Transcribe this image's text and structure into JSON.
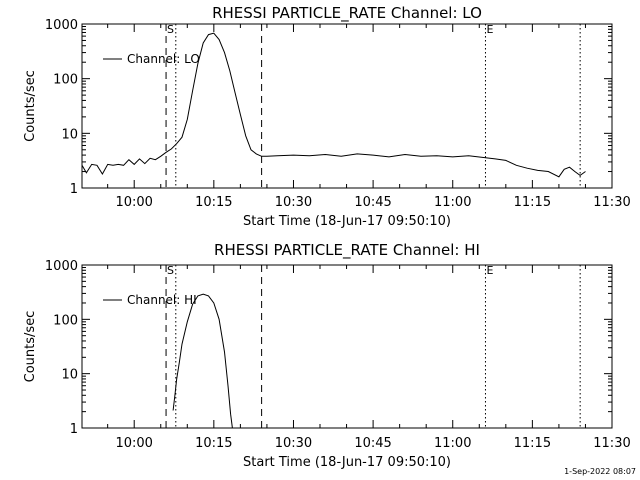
{
  "footer": {
    "stamp": "1-Sep-2022 08:07"
  },
  "chart_data": [
    {
      "type": "line",
      "title": "RHESSI PARTICLE_RATE Channel: LO",
      "xlabel": "Start Time (18-Jun-17 09:50:10)",
      "ylabel": "Counts/sec",
      "yscale": "log",
      "ylim": [
        1,
        1000
      ],
      "xlim": [
        "09:50:10",
        "11:30:00"
      ],
      "x_ticks": [
        "10:00",
        "10:15",
        "10:30",
        "10:45",
        "11:00",
        "11:15",
        "11:30"
      ],
      "y_ticks": [
        "1",
        "10",
        "100",
        "1000"
      ],
      "legend": "top-left",
      "series": [
        {
          "name": "Channel: LO",
          "x": [
            "09:50:10",
            "09:51:00",
            "09:52:00",
            "09:53:00",
            "09:54:00",
            "09:55:00",
            "09:56:00",
            "09:57:00",
            "09:58:00",
            "09:59:00",
            "10:00:00",
            "10:01:00",
            "10:02:00",
            "10:03:00",
            "10:04:00",
            "10:05:00",
            "10:06:00",
            "10:07:00",
            "10:08:00",
            "10:09:00",
            "10:10:00",
            "10:11:00",
            "10:12:00",
            "10:13:00",
            "10:14:00",
            "10:15:00",
            "10:16:00",
            "10:17:00",
            "10:18:00",
            "10:19:00",
            "10:20:00",
            "10:21:00",
            "10:22:00",
            "10:23:00",
            "10:24:00",
            "10:25:00",
            "10:27:00",
            "10:30:00",
            "10:33:00",
            "10:36:00",
            "10:39:00",
            "10:42:00",
            "10:45:00",
            "10:48:00",
            "10:51:00",
            "10:54:00",
            "10:57:00",
            "11:00:00",
            "11:03:00",
            "11:06:00",
            "11:08:00",
            "11:10:00",
            "11:12:00",
            "11:14:00",
            "11:16:00",
            "11:18:00",
            "11:20:00",
            "11:21:00",
            "11:22:00",
            "11:23:00",
            "11:24:00",
            "11:25:00"
          ],
          "values": [
            2.6,
            1.9,
            2.7,
            2.6,
            1.8,
            2.7,
            2.6,
            2.7,
            2.6,
            3.3,
            2.7,
            3.4,
            2.8,
            3.5,
            3.3,
            3.8,
            4.5,
            5.2,
            6.5,
            8.5,
            18,
            60,
            190,
            450,
            640,
            680,
            520,
            300,
            140,
            55,
            22,
            9,
            5,
            4.2,
            3.8,
            3.8,
            3.9,
            4.0,
            3.9,
            4.1,
            3.8,
            4.2,
            4.0,
            3.7,
            4.1,
            3.8,
            3.9,
            3.7,
            3.9,
            3.6,
            3.4,
            3.2,
            2.6,
            2.3,
            2.1,
            2.0,
            1.6,
            2.2,
            2.4,
            2.0,
            1.7,
            2.0
          ]
        }
      ],
      "annotations": [
        {
          "text": "S",
          "x": "10:06:00",
          "line": "dashed"
        },
        {
          "text": "",
          "x": "10:07:50",
          "line": "dotted"
        },
        {
          "text": "",
          "x": "10:24:00",
          "line": "dashed"
        },
        {
          "text": "E",
          "x": "11:06:10",
          "line": "dotted"
        },
        {
          "text": "",
          "x": "11:24:00",
          "line": "dotted"
        }
      ]
    },
    {
      "type": "line",
      "title": "RHESSI PARTICLE_RATE Channel: HI",
      "xlabel": "Start Time (18-Jun-17 09:50:10)",
      "ylabel": "Counts/sec",
      "yscale": "log",
      "ylim": [
        1,
        1000
      ],
      "xlim": [
        "09:50:10",
        "11:30:00"
      ],
      "x_ticks": [
        "10:00",
        "10:15",
        "10:30",
        "10:45",
        "11:00",
        "11:15",
        "11:30"
      ],
      "y_ticks": [
        "1",
        "10",
        "100",
        "1000"
      ],
      "legend": "top-left",
      "series": [
        {
          "name": "Channel: HI",
          "x": [
            "10:07:20",
            "10:07:40",
            "10:08:00",
            "10:08:30",
            "10:09:00",
            "10:10:00",
            "10:11:00",
            "10:12:00",
            "10:13:00",
            "10:14:00",
            "10:15:00",
            "10:16:00",
            "10:17:00",
            "10:17:40",
            "10:18:10",
            "10:18:30"
          ],
          "values": [
            2.1,
            4,
            8,
            16,
            35,
            90,
            190,
            270,
            290,
            270,
            200,
            100,
            25,
            6,
            1.8,
            1.0
          ]
        }
      ],
      "annotations": [
        {
          "text": "S",
          "x": "10:06:00",
          "line": "dashed"
        },
        {
          "text": "",
          "x": "10:07:50",
          "line": "dotted"
        },
        {
          "text": "",
          "x": "10:24:00",
          "line": "dashed"
        },
        {
          "text": "E",
          "x": "11:06:10",
          "line": "dotted"
        },
        {
          "text": "",
          "x": "11:24:00",
          "line": "dotted"
        }
      ]
    }
  ]
}
